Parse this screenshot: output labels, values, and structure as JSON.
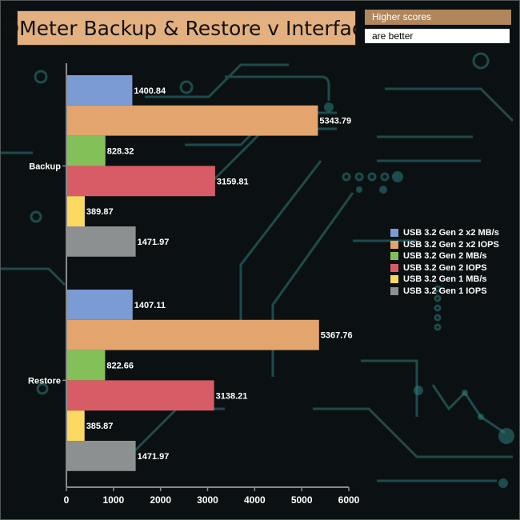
{
  "header": {
    "title": "IOMeter Backup & Restore v Interface",
    "note_line1": "Higher scores",
    "note_line2": "are better"
  },
  "chart_data": {
    "type": "bar",
    "orientation": "horizontal",
    "categories": [
      "Backup",
      "Restore"
    ],
    "series": [
      {
        "name": "USB 3.2 Gen 2 x2 MB/s",
        "color": "#7b9bd4",
        "values": [
          1400.84,
          1407.11
        ]
      },
      {
        "name": "USB 3.2 Gen 2 x2 IOPS",
        "color": "#e3a46d",
        "values": [
          5343.79,
          5367.76
        ]
      },
      {
        "name": "USB 3.2 Gen 2 MB/s",
        "color": "#84c058",
        "values": [
          828.32,
          822.66
        ]
      },
      {
        "name": "USB 3.2 Gen 2 IOPS",
        "color": "#d85c65",
        "values": [
          3159.81,
          3138.21
        ]
      },
      {
        "name": "USB 3.2 Gen 1 MB/s",
        "color": "#fbd861",
        "values": [
          389.87,
          385.87
        ]
      },
      {
        "name": "USB 3.2 Gen 1 IOPS",
        "color": "#8d9091",
        "values": [
          1471.97,
          1471.97
        ]
      }
    ],
    "xlim": [
      0,
      6000
    ],
    "xticks": [
      0,
      1000,
      2000,
      3000,
      4000,
      5000,
      6000
    ],
    "grid": false,
    "legend_position": "right"
  }
}
